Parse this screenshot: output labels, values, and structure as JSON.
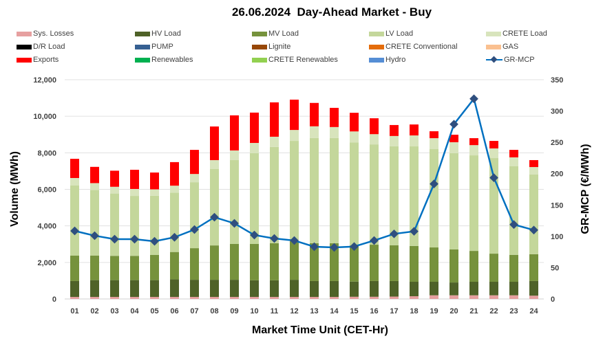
{
  "chart_data": {
    "type": "bar",
    "title": "26.06.2024  Day-Ahead Market - Buy",
    "xlabel": "Market Time Unit (CET-Hr)",
    "ylabel": "Volume (MWh)",
    "y2label": "GR-MCP (€/MWh)",
    "ylim": [
      0,
      12000
    ],
    "y2lim": [
      0,
      350
    ],
    "yticks": [
      "0",
      "2,000",
      "4,000",
      "6,000",
      "8,000",
      "10,000",
      "12,000"
    ],
    "yticks_values": [
      0,
      2000,
      4000,
      6000,
      8000,
      10000,
      12000
    ],
    "y2ticks": [
      "0",
      "50",
      "100",
      "150",
      "200",
      "250",
      "300",
      "350"
    ],
    "y2ticks_values": [
      0,
      50,
      100,
      150,
      200,
      250,
      300,
      350
    ],
    "grid": true,
    "legend_position": "top",
    "categories": [
      "01",
      "02",
      "03",
      "04",
      "05",
      "06",
      "07",
      "08",
      "09",
      "10",
      "11",
      "12",
      "13",
      "14",
      "15",
      "16",
      "17",
      "18",
      "19",
      "20",
      "21",
      "22",
      "23",
      "24"
    ],
    "legend": [
      {
        "name": "Sys. Losses",
        "color": "#e6a0a0",
        "kind": "bar"
      },
      {
        "name": "HV Load",
        "color": "#4f6228",
        "kind": "bar"
      },
      {
        "name": "MV Load",
        "color": "#76923c",
        "kind": "bar"
      },
      {
        "name": "LV Load",
        "color": "#c4d79b",
        "kind": "bar"
      },
      {
        "name": "CRETE Load",
        "color": "#d8e4bc",
        "kind": "bar"
      },
      {
        "name": "D/R Load",
        "color": "#000000",
        "kind": "bar"
      },
      {
        "name": "PUMP",
        "color": "#366092",
        "kind": "bar"
      },
      {
        "name": "Lignite",
        "color": "#974706",
        "kind": "bar"
      },
      {
        "name": "CRETE Conventional",
        "color": "#e46c0a",
        "kind": "bar"
      },
      {
        "name": "GAS",
        "color": "#fac090",
        "kind": "bar"
      },
      {
        "name": "Exports",
        "color": "#ff0000",
        "kind": "bar"
      },
      {
        "name": "Renewables",
        "color": "#00b050",
        "kind": "bar"
      },
      {
        "name": "CRETE Renewables",
        "color": "#92d050",
        "kind": "bar"
      },
      {
        "name": "Hydro",
        "color": "#558ed5",
        "kind": "bar"
      },
      {
        "name": "GR-MCP",
        "color": "#0070c0",
        "kind": "line"
      }
    ],
    "series": [
      {
        "name": "Sys. Losses",
        "color": "#e6a0a0",
        "values": [
          110,
          110,
          110,
          110,
          110,
          110,
          110,
          110,
          110,
          110,
          110,
          110,
          110,
          110,
          120,
          120,
          130,
          150,
          200,
          200,
          200,
          200,
          200,
          180
        ]
      },
      {
        "name": "HV Load",
        "color": "#4f6228",
        "values": [
          870,
          920,
          920,
          920,
          920,
          960,
          940,
          940,
          940,
          910,
          910,
          940,
          870,
          870,
          830,
          860,
          850,
          790,
          740,
          700,
          740,
          740,
          740,
          800
        ]
      },
      {
        "name": "MV Load",
        "color": "#76923c",
        "values": [
          1390,
          1340,
          1330,
          1330,
          1380,
          1500,
          1730,
          1880,
          1960,
          1990,
          2030,
          2110,
          2070,
          2070,
          1980,
          1990,
          1960,
          1960,
          1880,
          1810,
          1690,
          1540,
          1470,
          1470
        ]
      },
      {
        "name": "LV Load",
        "color": "#c4d79b",
        "values": [
          3850,
          3590,
          3410,
          3280,
          3240,
          3250,
          3610,
          4180,
          4590,
          4970,
          5270,
          5490,
          5760,
          5760,
          5640,
          5490,
          5420,
          5450,
          5380,
          5270,
          5230,
          5230,
          4850,
          4360
        ]
      },
      {
        "name": "CRETE Load",
        "color": "#d8e4bc",
        "values": [
          400,
          380,
          370,
          380,
          350,
          380,
          450,
          490,
          530,
          560,
          560,
          600,
          640,
          600,
          600,
          560,
          560,
          600,
          600,
          600,
          560,
          530,
          490,
          410
        ]
      },
      {
        "name": "Exports",
        "color": "#ff0000",
        "values": [
          1050,
          890,
          880,
          1050,
          920,
          1290,
          1320,
          1840,
          1920,
          1660,
          1880,
          1660,
          1280,
          1050,
          1020,
          870,
          600,
          600,
          380,
          410,
          380,
          410,
          410,
          380
        ]
      },
      {
        "name": "GR-MCP",
        "color": "#0070c0",
        "axis": "right",
        "type": "line",
        "values": [
          108.6,
          101.0,
          95.5,
          95.5,
          92.0,
          98.5,
          110.8,
          130.5,
          120.7,
          102.0,
          96.6,
          93.3,
          83.4,
          82.3,
          83.7,
          93.3,
          103.9,
          107.9,
          183.6,
          279.0,
          319.6,
          193.5,
          118.8,
          110.0
        ]
      }
    ]
  }
}
